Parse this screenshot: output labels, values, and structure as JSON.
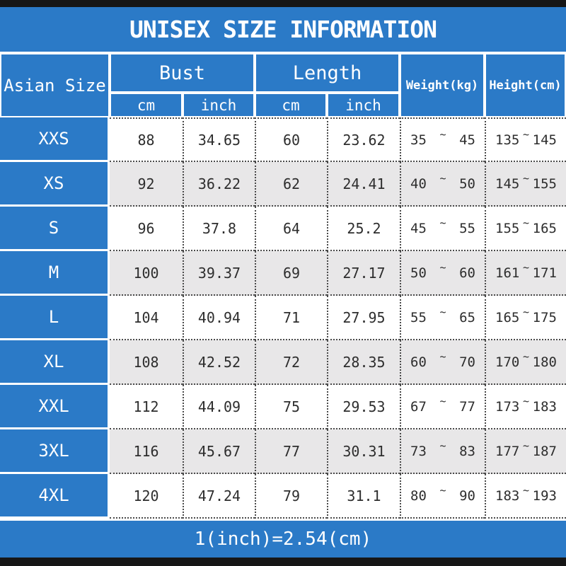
{
  "title": "UNISEX SIZE INFORMATION",
  "footer_note": "1(inch)=2.54(cm)",
  "tilde": "~",
  "columns": {
    "size": "Asian Size",
    "bust": "Bust",
    "length": "Length",
    "weight": "Weight(kg)",
    "height": "Height(cm)",
    "unit_cm": "cm",
    "unit_inch": "inch"
  },
  "colors": {
    "blue": "#2b7ac7",
    "alt_row_gray": "#e8e7e8",
    "bar_black": "#161616",
    "text_dark": "#2d2d2d",
    "text_white": "#ffffff"
  },
  "chart_data": {
    "type": "table",
    "title": "UNISEX SIZE INFORMATION",
    "column_headers": [
      "Asian Size",
      "Bust cm",
      "Bust inch",
      "Length cm",
      "Length inch",
      "Weight(kg)",
      "Height(cm)"
    ],
    "note": "1(inch)=2.54(cm)",
    "rows": [
      {
        "size": "XXS",
        "bust_cm": 88,
        "bust_inch": 34.65,
        "length_cm": 60,
        "length_inch": 23.62,
        "weight_kg": [
          35,
          45
        ],
        "height_cm": [
          135,
          145
        ]
      },
      {
        "size": "XS",
        "bust_cm": 92,
        "bust_inch": 36.22,
        "length_cm": 62,
        "length_inch": 24.41,
        "weight_kg": [
          40,
          50
        ],
        "height_cm": [
          145,
          155
        ]
      },
      {
        "size": "S",
        "bust_cm": 96,
        "bust_inch": 37.8,
        "length_cm": 64,
        "length_inch": 25.2,
        "weight_kg": [
          45,
          55
        ],
        "height_cm": [
          155,
          165
        ]
      },
      {
        "size": "M",
        "bust_cm": 100,
        "bust_inch": 39.37,
        "length_cm": 69,
        "length_inch": 27.17,
        "weight_kg": [
          50,
          60
        ],
        "height_cm": [
          161,
          171
        ]
      },
      {
        "size": "L",
        "bust_cm": 104,
        "bust_inch": 40.94,
        "length_cm": 71,
        "length_inch": 27.95,
        "weight_kg": [
          55,
          65
        ],
        "height_cm": [
          165,
          175
        ]
      },
      {
        "size": "XL",
        "bust_cm": 108,
        "bust_inch": 42.52,
        "length_cm": 72,
        "length_inch": 28.35,
        "weight_kg": [
          60,
          70
        ],
        "height_cm": [
          170,
          180
        ]
      },
      {
        "size": "XXL",
        "bust_cm": 112,
        "bust_inch": 44.09,
        "length_cm": 75,
        "length_inch": 29.53,
        "weight_kg": [
          67,
          77
        ],
        "height_cm": [
          173,
          183
        ]
      },
      {
        "size": "3XL",
        "bust_cm": 116,
        "bust_inch": 45.67,
        "length_cm": 77,
        "length_inch": 30.31,
        "weight_kg": [
          73,
          83
        ],
        "height_cm": [
          177,
          187
        ]
      },
      {
        "size": "4XL",
        "bust_cm": 120,
        "bust_inch": 47.24,
        "length_cm": 79,
        "length_inch": 31.1,
        "weight_kg": [
          80,
          90
        ],
        "height_cm": [
          183,
          193
        ]
      }
    ]
  }
}
